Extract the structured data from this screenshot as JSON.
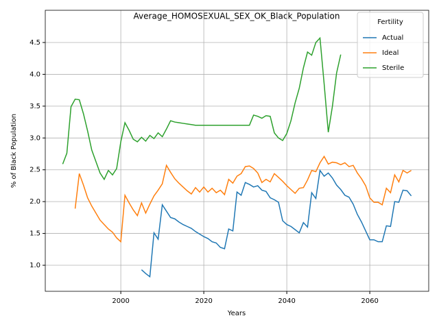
{
  "chart_data": {
    "type": "line",
    "title": "Average_HOMOSEXUAL_SEX_OK_Black_Population",
    "x_label": "Years",
    "y_label": "% of Black Population",
    "x": [
      1986,
      1987,
      1988,
      1989,
      1990,
      1991,
      1992,
      1993,
      1994,
      1995,
      1996,
      1997,
      1998,
      1999,
      2000,
      2001,
      2002,
      2003,
      2004,
      2005,
      2006,
      2007,
      2008,
      2009,
      2010,
      2011,
      2012,
      2013,
      2014,
      2015,
      2016,
      2017,
      2018,
      2019,
      2020,
      2021,
      2022,
      2023,
      2024,
      2025,
      2026,
      2027,
      2028,
      2029,
      2030,
      2031,
      2032,
      2033,
      2034,
      2035,
      2036,
      2037,
      2038,
      2039,
      2040,
      2041,
      2042,
      2043,
      2044,
      2045,
      2046,
      2047,
      2048,
      2049,
      2050,
      2051,
      2052,
      2053,
      2054,
      2055,
      2056,
      2057,
      2058,
      2059,
      2060,
      2061,
      2062,
      2063,
      2064,
      2065,
      2066,
      2067,
      2068,
      2069,
      2070
    ],
    "series": [
      {
        "name": "Actual",
        "color": "#1f77b4",
        "values": [
          null,
          null,
          null,
          null,
          null,
          null,
          null,
          null,
          null,
          null,
          null,
          null,
          null,
          null,
          null,
          null,
          null,
          null,
          null,
          0.93,
          0.87,
          0.82,
          1.51,
          1.41,
          1.95,
          1.85,
          1.75,
          1.73,
          1.68,
          1.64,
          1.61,
          1.58,
          1.53,
          1.49,
          1.45,
          1.42,
          1.37,
          1.35,
          1.28,
          1.26,
          1.57,
          1.54,
          2.15,
          2.1,
          2.3,
          2.27,
          2.23,
          2.25,
          2.18,
          2.16,
          2.06,
          2.03,
          1.99,
          1.7,
          1.64,
          1.61,
          1.56,
          1.51,
          1.67,
          1.6,
          2.14,
          2.05,
          2.49,
          2.4,
          2.45,
          2.37,
          2.26,
          2.19,
          2.1,
          2.07,
          1.96,
          1.8,
          1.68,
          1.54,
          1.4,
          1.4,
          1.37,
          1.37,
          1.62,
          1.61,
          2.0,
          1.99,
          2.18,
          2.17,
          2.09
        ]
      },
      {
        "name": "Ideal",
        "color": "#ff7f0e",
        "values": [
          null,
          null,
          null,
          1.89,
          2.44,
          2.26,
          2.06,
          1.93,
          1.82,
          1.71,
          1.64,
          1.57,
          1.52,
          1.43,
          1.37,
          2.1,
          1.98,
          1.87,
          1.78,
          1.98,
          1.82,
          1.96,
          2.09,
          2.18,
          2.28,
          2.57,
          2.46,
          2.36,
          2.29,
          2.23,
          2.17,
          2.12,
          2.22,
          2.15,
          2.23,
          2.15,
          2.21,
          2.14,
          2.18,
          2.11,
          2.35,
          2.29,
          2.4,
          2.44,
          2.55,
          2.56,
          2.52,
          2.45,
          2.3,
          2.35,
          2.31,
          2.44,
          2.38,
          2.32,
          2.25,
          2.19,
          2.13,
          2.21,
          2.22,
          2.34,
          2.49,
          2.47,
          2.61,
          2.71,
          2.59,
          2.62,
          2.61,
          2.58,
          2.61,
          2.55,
          2.57,
          2.45,
          2.36,
          2.25,
          2.06,
          1.99,
          1.99,
          1.95,
          2.21,
          2.14,
          2.42,
          2.31,
          2.49,
          2.45,
          2.49
        ]
      },
      {
        "name": "Sterile",
        "color": "#2ca02c",
        "values": [
          2.59,
          2.76,
          3.49,
          3.61,
          3.6,
          3.38,
          3.11,
          2.81,
          2.63,
          2.45,
          2.35,
          2.49,
          2.42,
          2.52,
          2.94,
          3.24,
          3.12,
          2.98,
          2.94,
          3.01,
          2.95,
          3.04,
          2.99,
          3.08,
          3.02,
          3.14,
          3.27,
          3.25,
          3.24,
          3.23,
          3.22,
          3.21,
          3.2,
          3.2,
          3.2,
          3.2,
          3.2,
          3.2,
          3.2,
          3.2,
          3.2,
          3.2,
          3.2,
          3.2,
          3.2,
          3.2,
          3.36,
          3.34,
          3.31,
          3.35,
          3.34,
          3.08,
          3.0,
          2.96,
          3.07,
          3.27,
          3.55,
          3.78,
          4.1,
          4.35,
          4.3,
          4.5,
          4.57,
          3.85,
          3.09,
          3.5,
          4.02,
          4.31,
          null,
          null,
          null,
          null,
          null,
          null,
          null,
          null,
          null,
          null,
          null,
          null,
          null,
          null,
          null,
          null,
          null
        ]
      }
    ],
    "xlim": [
      1981.8,
      2074.2
    ],
    "ylim": [
      0.591,
      5.006
    ],
    "xticks": [
      2000,
      2020,
      2040,
      2060
    ],
    "yticks": [
      {
        "value": 1.0,
        "label": "1.0"
      },
      1.5,
      {
        "value": 2.0,
        "label": "2.0"
      },
      2.5,
      {
        "value": 3.0,
        "label": "3.0"
      },
      3.5,
      {
        "value": 4.0,
        "label": "4.0"
      },
      4.5
    ],
    "grid": true,
    "legend_title": "Fertility",
    "legend_position": "upper right"
  }
}
